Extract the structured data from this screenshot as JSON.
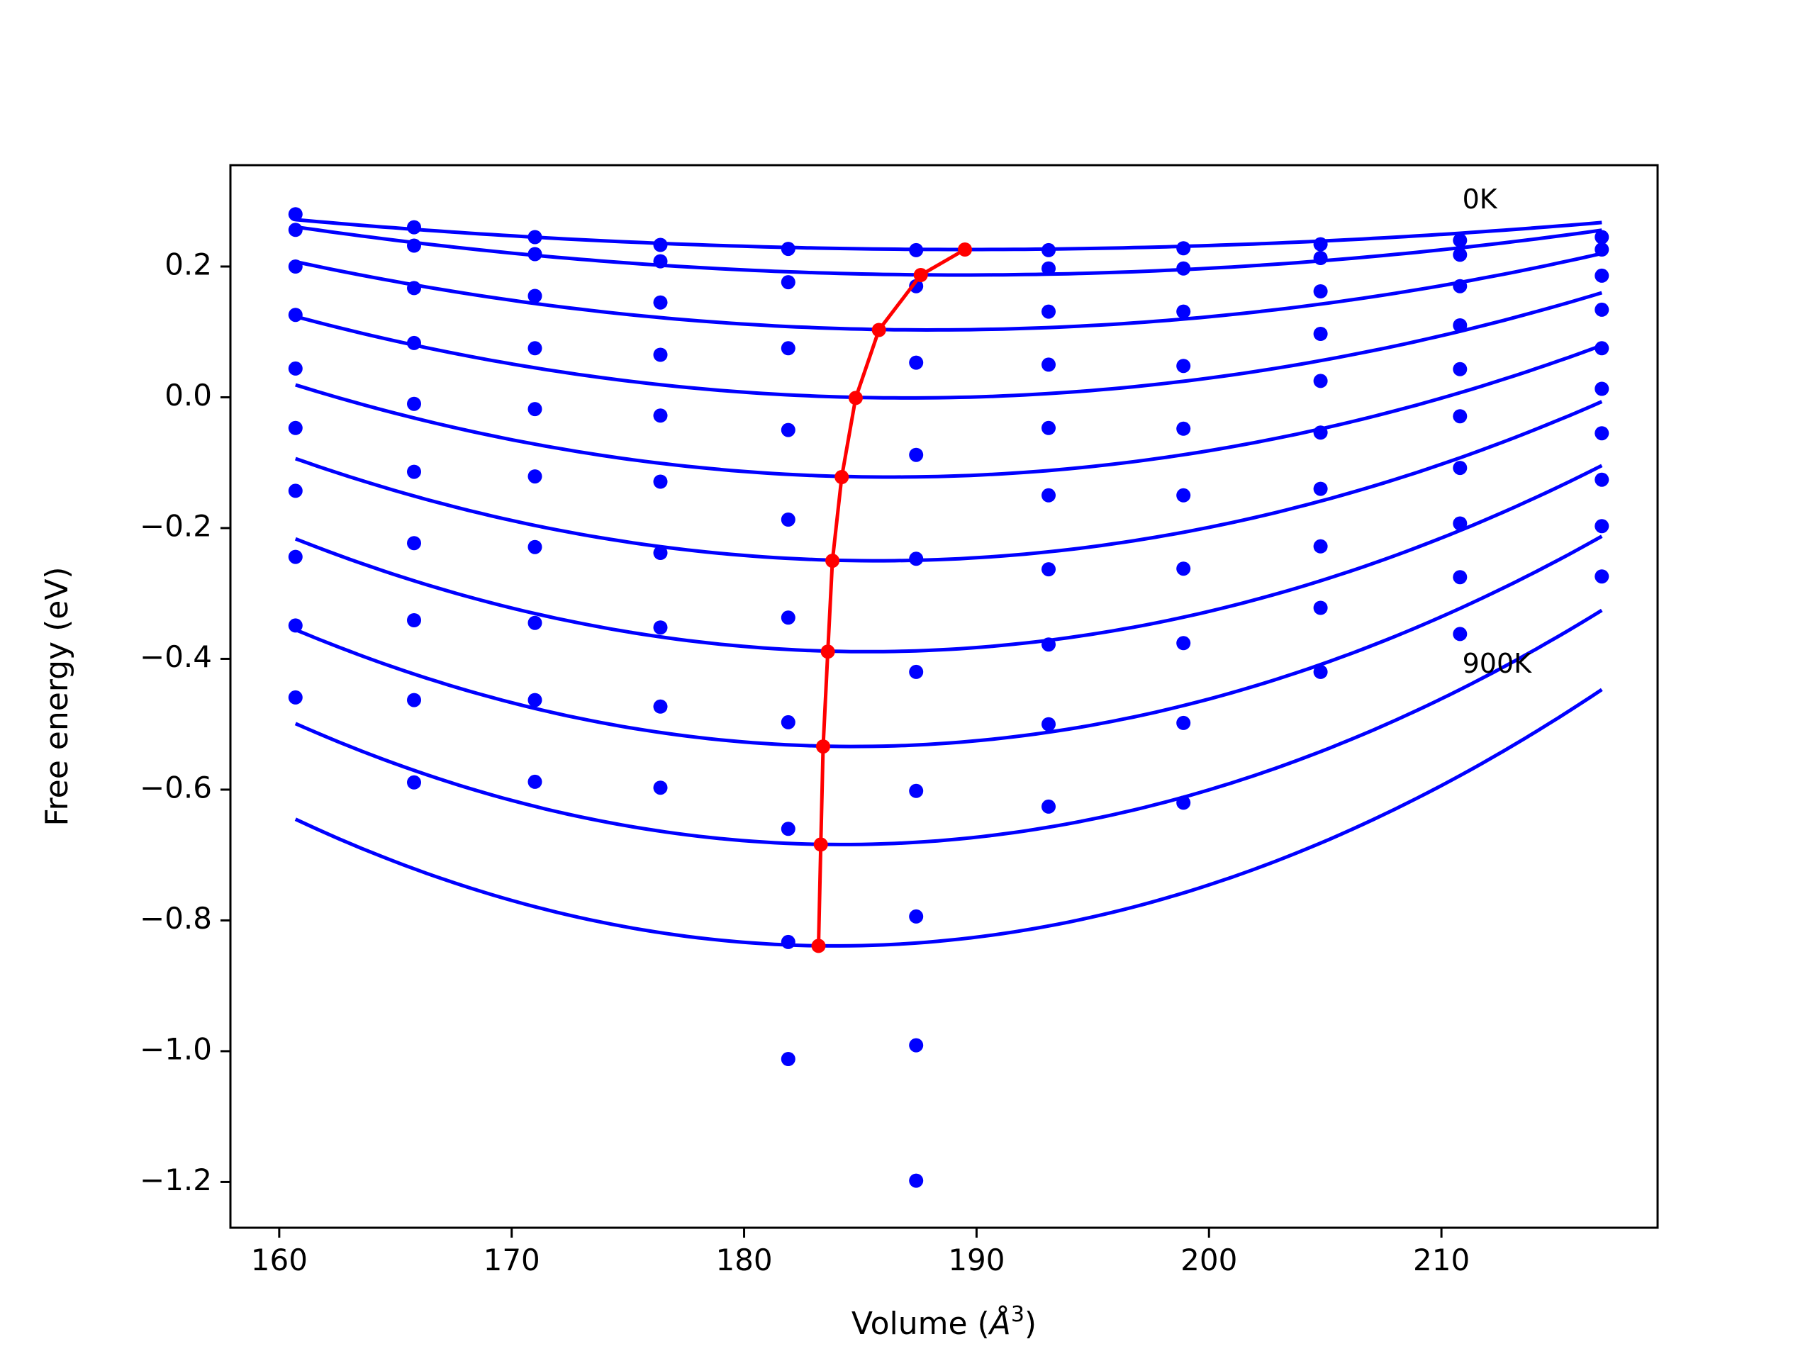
{
  "chart_data": {
    "type": "line",
    "title": "",
    "xlabel": "Volume",
    "xlabel_unit": "Å",
    "xlabel_unit_power": "3",
    "ylabel": "Free energy (eV)",
    "xlim": [
      157.9,
      219.3
    ],
    "ylim": [
      -1.27,
      0.355
    ],
    "x_ticks": [
      160,
      170,
      180,
      190,
      200,
      210
    ],
    "x_tick_labels": [
      "160",
      "170",
      "180",
      "190",
      "200",
      "210"
    ],
    "y_ticks": [
      0.2,
      0.0,
      -0.2,
      -0.4,
      -0.6,
      -0.8,
      -1.0,
      -1.2
    ],
    "y_tick_labels": [
      "0.2",
      "0.0",
      "−0.2",
      "−0.4",
      "−0.6",
      "−0.8",
      "−1.0",
      "−1.2"
    ],
    "grid": false,
    "legend": "none",
    "colors": {
      "points": "#0000ff",
      "fits": "#0000ff",
      "minimum_path": "#ff0000"
    },
    "annotations": [
      {
        "text": "0K",
        "x": 210.9,
        "y": 0.3
      },
      {
        "text": "900K",
        "x": 210.9,
        "y": -0.41
      }
    ],
    "scatter_x": [
      160.7,
      165.8,
      171.0,
      176.4,
      181.9,
      187.4,
      193.1,
      198.9,
      204.8,
      210.8,
      216.9
    ],
    "scatter_series": [
      [
        0.28,
        0.26,
        0.245,
        0.233,
        0.227,
        0.225,
        0.225,
        0.228,
        0.234,
        0.24,
        0.245
      ],
      [
        0.256,
        0.232,
        0.219,
        0.208,
        0.176,
        0.17,
        0.197,
        0.197,
        0.213,
        0.218,
        0.226
      ],
      [
        0.2,
        0.167,
        0.155,
        0.145,
        0.075,
        0.053,
        0.131,
        0.131,
        0.162,
        0.17,
        0.186
      ],
      [
        0.126,
        0.083,
        0.075,
        0.065,
        -0.05,
        -0.088,
        0.05,
        0.048,
        0.097,
        0.11,
        0.134
      ],
      [
        0.044,
        -0.01,
        -0.018,
        -0.028,
        -0.187,
        -0.247,
        -0.047,
        -0.048,
        0.025,
        0.043,
        0.075
      ],
      [
        -0.047,
        -0.114,
        -0.121,
        -0.129,
        -0.337,
        -0.42,
        -0.15,
        -0.15,
        -0.054,
        -0.029,
        0.013
      ],
      [
        -0.143,
        -0.223,
        -0.229,
        -0.238,
        -0.497,
        -0.602,
        -0.263,
        -0.262,
        -0.14,
        -0.108,
        -0.055
      ],
      [
        -0.244,
        -0.341,
        -0.345,
        -0.352,
        -0.66,
        -0.794,
        -0.378,
        -0.376,
        -0.228,
        -0.193,
        -0.126
      ],
      [
        -0.349,
        -0.463,
        -0.463,
        -0.473,
        -0.833,
        -0.991,
        -0.5,
        -0.498,
        -0.322,
        -0.275,
        -0.197
      ],
      [
        -0.459,
        -0.589,
        -0.588,
        -0.597,
        -1.012,
        -1.198,
        -0.626,
        -0.62,
        -0.42,
        -0.362,
        -0.274
      ]
    ],
    "fit_curves": [
      {
        "v0": 189.5,
        "e0": 0.226,
        "a": 5.5e-05
      },
      {
        "v0": 189.3,
        "e0": 0.187,
        "a": 9e-05
      },
      {
        "v0": 188.0,
        "e0": 0.103,
        "a": 0.00014
      },
      {
        "v0": 187.0,
        "e0": -0.001,
        "a": 0.00018
      },
      {
        "v0": 186.3,
        "e0": -0.122,
        "a": 0.000215
      },
      {
        "v0": 185.7,
        "e0": -0.25,
        "a": 0.00025
      },
      {
        "v0": 185.3,
        "e0": -0.389,
        "a": 0.000285
      },
      {
        "v0": 184.7,
        "e0": -0.534,
        "a": 0.00031
      },
      {
        "v0": 184.2,
        "e0": -0.684,
        "a": 0.000335
      },
      {
        "v0": 183.9,
        "e0": -0.839,
        "a": 0.00036
      }
    ],
    "minimum_path": {
      "x": [
        189.5,
        187.6,
        185.8,
        184.8,
        184.2,
        183.8,
        183.6,
        183.4,
        183.3,
        183.2
      ],
      "y": [
        0.226,
        0.187,
        0.103,
        -0.001,
        -0.122,
        -0.25,
        -0.389,
        -0.534,
        -0.684,
        -0.839
      ]
    }
  }
}
